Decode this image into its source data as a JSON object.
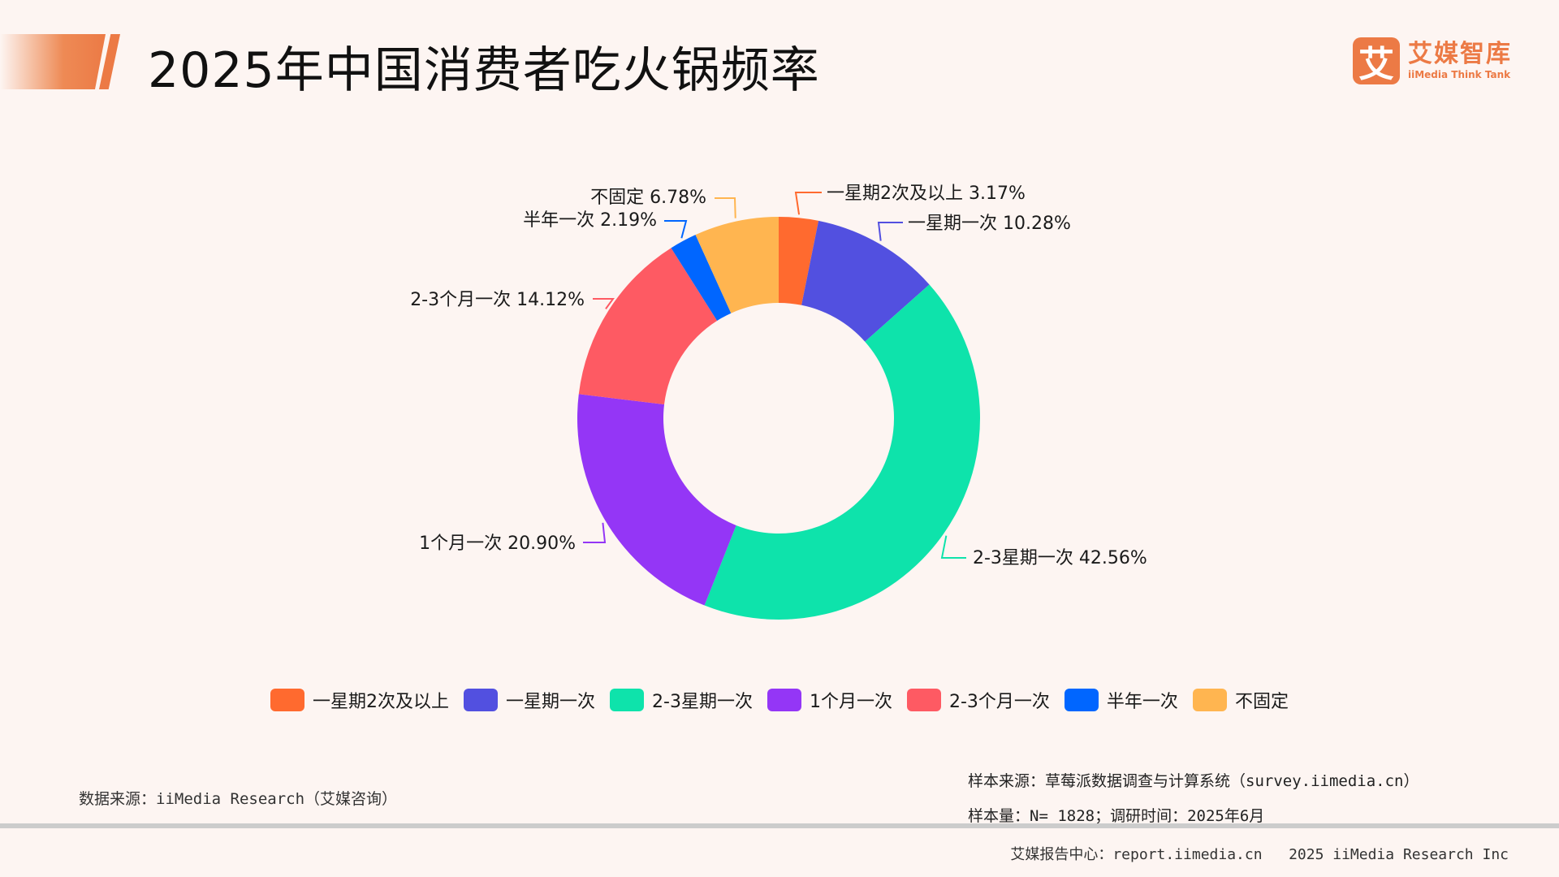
{
  "header": {
    "title": "2025年中国消费者吃火锅频率",
    "logo": {
      "mark": "艾",
      "name_cn": "艾媒智库",
      "name_en": "iiMedia Think Tank",
      "brand_color": "#ec7a45"
    }
  },
  "chart_data": {
    "type": "pie",
    "subtype": "donut",
    "title": "2025年中国消费者吃火锅频率",
    "unit": "%",
    "start_angle": "12 o'clock, clockwise",
    "legend_position": "bottom",
    "categories": [
      "一星期2次及以上",
      "一星期一次",
      "2-3星期一次",
      "1个月一次",
      "2-3个月一次",
      "半年一次",
      "不固定"
    ],
    "values": [
      3.17,
      10.28,
      42.56,
      20.9,
      14.12,
      2.19,
      6.78
    ],
    "colors": [
      "#ff6a2f",
      "#5250e0",
      "#0ee3ab",
      "#9436f6",
      "#fe5a63",
      "#0066ff",
      "#ffb550"
    ],
    "data_labels": [
      "一星期2次及以上 3.17%",
      "一星期一次 10.28%",
      "2-3星期一次 42.56%",
      "1个月一次 20.90%",
      "2-3个月一次 14.12%",
      "半年一次 2.19%",
      "不固定 6.78%"
    ]
  },
  "legend": {
    "items": [
      {
        "label": "一星期2次及以上",
        "color": "#ff6a2f"
      },
      {
        "label": "一星期一次",
        "color": "#5250e0"
      },
      {
        "label": "2-3星期一次",
        "color": "#0ee3ab"
      },
      {
        "label": "1个月一次",
        "color": "#9436f6"
      },
      {
        "label": "2-3个月一次",
        "color": "#fe5a63"
      },
      {
        "label": "半年一次",
        "color": "#0066ff"
      },
      {
        "label": "不固定",
        "color": "#ffb550"
      }
    ]
  },
  "footnotes": {
    "data_source": "数据来源：iiMedia Research（艾媒咨询）",
    "sample_source": "样本来源：草莓派数据调查与计算系统（survey.iimedia.cn）",
    "sample_size": "样本量：N= 1828；调研时间：2025年6月"
  },
  "footer": {
    "text": "艾媒报告中心：report.iimedia.cn   2025 iiMedia Research Inc"
  }
}
